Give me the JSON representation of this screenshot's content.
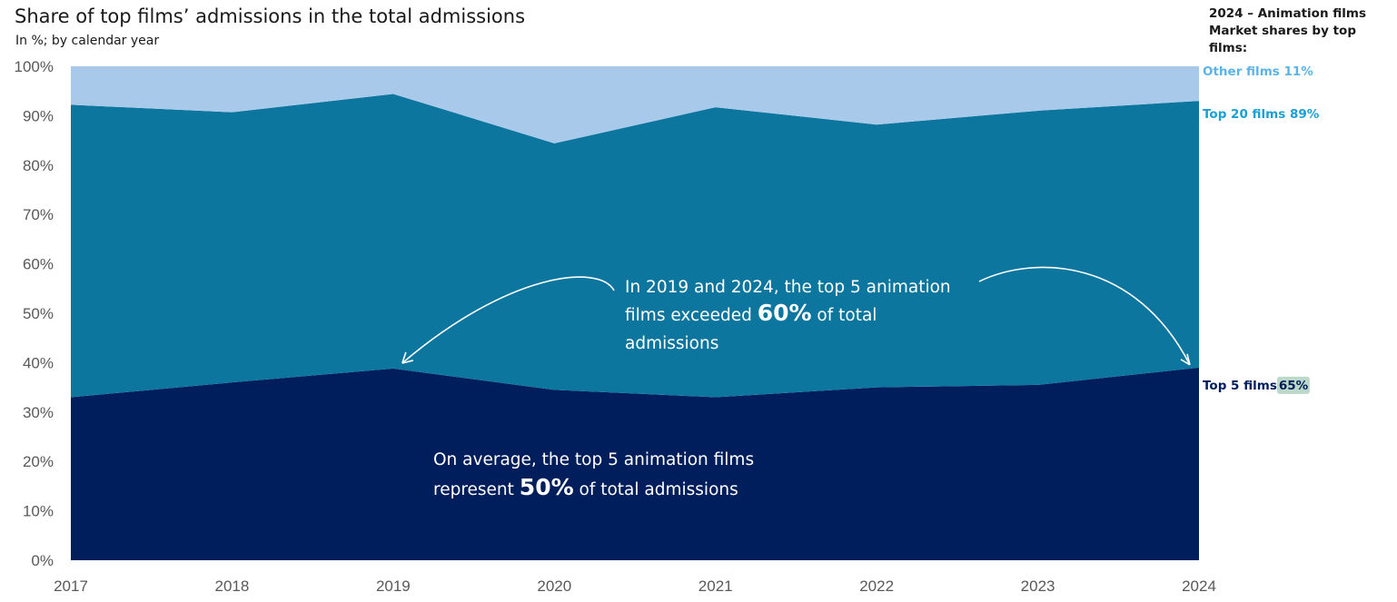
{
  "title": "Share of top films’ admissions in the total admissions",
  "subtitle": "In %; by calendar year",
  "legend_header": {
    "line1": "2024 – Animation films",
    "line2": "Market shares by top films:"
  },
  "chart_data": {
    "type": "area",
    "stacked": true,
    "title": "Share of top films’ admissions in the total admissions",
    "subtitle": "In %; by calendar year",
    "xlabel": "",
    "ylabel": "",
    "categories": [
      "2017",
      "2018",
      "2019",
      "2020",
      "2021",
      "2022",
      "2023",
      "2024"
    ],
    "ylim": [
      0,
      100
    ],
    "yticks": [
      "0%",
      "10%",
      "20%",
      "30%",
      "40%",
      "50%",
      "60%",
      "70%",
      "80%",
      "90%",
      "100%"
    ],
    "series": [
      {
        "name": "Top 5 films",
        "values": [
          33,
          36,
          38.8,
          34.5,
          33,
          35,
          35.5,
          39
        ],
        "color": "#011e5c"
      },
      {
        "name": "Top 20 films",
        "values": [
          59.2,
          54.7,
          55.6,
          49.9,
          58.7,
          53.2,
          55.5,
          54
        ],
        "color": "#0c769f"
      },
      {
        "name": "Other films",
        "values": [
          7.8,
          9.3,
          5.6,
          15.6,
          8.3,
          11.8,
          9,
          7
        ],
        "color": "#a8c9ea"
      }
    ],
    "end_labels": [
      {
        "series": "Other films",
        "text": "Other films 11%",
        "color": "#5bb3e6"
      },
      {
        "series": "Top 20 films",
        "text": "Top 20 films 89%",
        "color": "#1a9fd6"
      },
      {
        "series": "Top 5 films",
        "text": "Top 5 films",
        "badge": "65%",
        "color": "#011e5c",
        "badge_bg": "#bcd8c8"
      }
    ],
    "annotations": [
      {
        "id": "above",
        "lines": [
          [
            {
              "text": "In 2019 and 2024, the top 5 animation",
              "bold": false
            }
          ],
          [
            {
              "text": "films exceeded ",
              "bold": false
            },
            {
              "text": "60%",
              "bold": true
            },
            {
              "text": " of total",
              "bold": false
            }
          ],
          [
            {
              "text": "admissions",
              "bold": false
            }
          ]
        ],
        "arrows_to": [
          "2019",
          "2024"
        ]
      },
      {
        "id": "below",
        "lines": [
          [
            {
              "text": "On average, the top 5 animation films",
              "bold": false
            }
          ],
          [
            {
              "text": "represent ",
              "bold": false
            },
            {
              "text": "50%",
              "bold": true
            },
            {
              "text": " of total admissions",
              "bold": false
            }
          ]
        ]
      }
    ]
  }
}
